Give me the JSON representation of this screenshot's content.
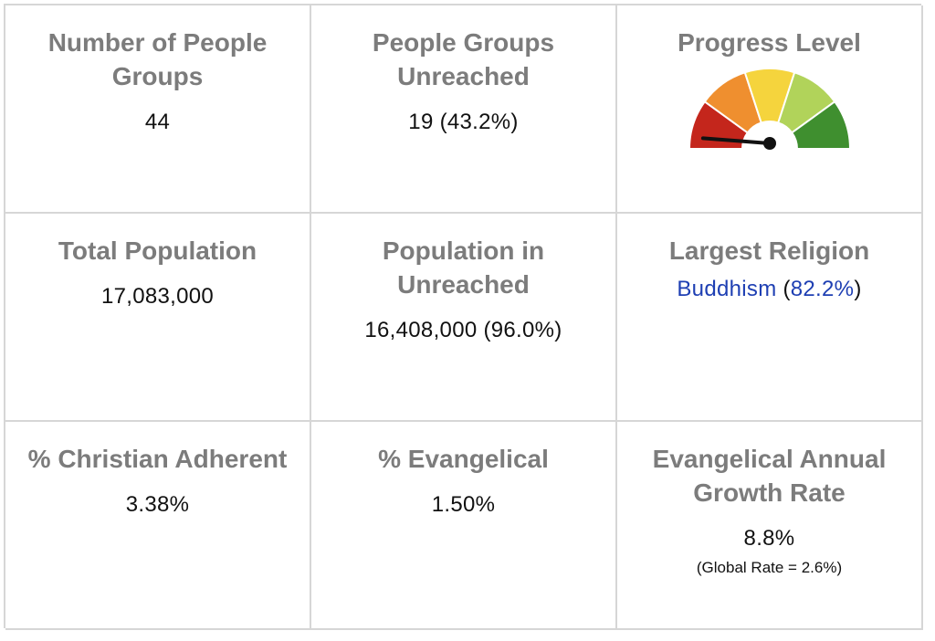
{
  "stats": {
    "people_groups": {
      "label": "Number of People Groups",
      "value": "44"
    },
    "groups_unreached": {
      "label": "People Groups Unreached",
      "value": "19",
      "percent": "(43.2%)"
    },
    "progress_level": {
      "label": "Progress Level",
      "level_fraction": 0.05,
      "segment_colors": [
        "#c4261c",
        "#ef8f2f",
        "#f5d43d",
        "#b1d35a",
        "#3f8f2f"
      ]
    },
    "total_population": {
      "label": "Total Population",
      "value": "17,083,000"
    },
    "population_unreached": {
      "label": "Population in Unreached",
      "value": "16,408,000",
      "percent": "(96.0%)"
    },
    "largest_religion": {
      "label": "Largest Religion",
      "religion": "Buddhism",
      "open_paren": "(",
      "percent": "82.2%",
      "close_paren": ")"
    },
    "christian_adherent": {
      "label": "% Christian Adherent",
      "value": "3.38%"
    },
    "evangelical": {
      "label": "% Evangelical",
      "value": "1.50%"
    },
    "evangelical_growth": {
      "label": "Evangelical Annual Growth Rate",
      "value": "8.8%",
      "note": "(Global Rate = 2.6%)"
    }
  },
  "colors": {
    "label": "#7c7c7c",
    "link": "#1e3fb3",
    "border": "#d6d6d6"
  }
}
